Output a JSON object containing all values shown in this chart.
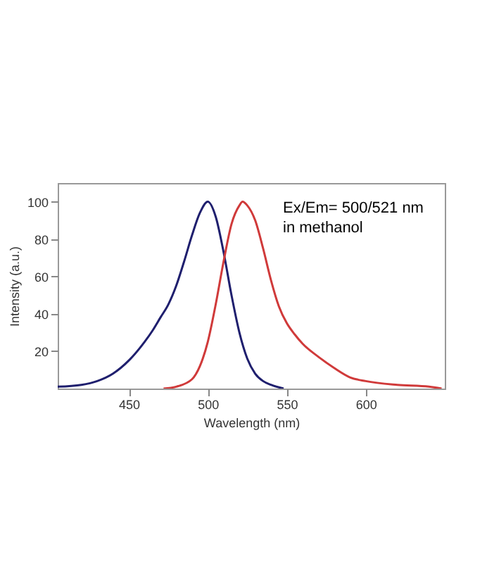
{
  "chart_data": {
    "type": "line",
    "xlabel": "Wavelength (nm)",
    "ylabel": "Intensity (a.u.)",
    "annotations": [
      "Ex/Em= 500/521 nm\nin methanol"
    ],
    "xlim": [
      405,
      650
    ],
    "ylim": [
      0,
      110
    ],
    "xticks": [
      450,
      500,
      550,
      600
    ],
    "yticks": [
      20,
      40,
      60,
      80,
      100
    ],
    "grid": false,
    "marker": "none",
    "line_style": "solid",
    "series": [
      {
        "color": "#1f1f6e",
        "x": [
          405,
          420,
          430,
          440,
          450,
          460,
          465,
          470,
          475,
          480,
          485,
          490,
          495,
          500,
          505,
          510,
          515,
          520,
          525,
          530,
          535,
          540,
          548
        ],
        "values": [
          1,
          2,
          4,
          8,
          15,
          25,
          31,
          38,
          45,
          55,
          68,
          82,
          94,
          100,
          92,
          73,
          50,
          30,
          16,
          8,
          4,
          2,
          0
        ]
      },
      {
        "color": "#d03a3a",
        "x": [
          472,
          480,
          490,
          495,
          500,
          505,
          510,
          515,
          520,
          522,
          525,
          530,
          535,
          540,
          545,
          550,
          555,
          560,
          570,
          580,
          590,
          600,
          620,
          640,
          648
        ],
        "values": [
          0,
          1,
          5,
          12,
          25,
          45,
          68,
          88,
          98,
          100,
          98,
          90,
          75,
          58,
          44,
          35,
          29,
          24,
          17,
          11,
          6,
          4,
          2,
          1,
          0
        ]
      }
    ]
  }
}
